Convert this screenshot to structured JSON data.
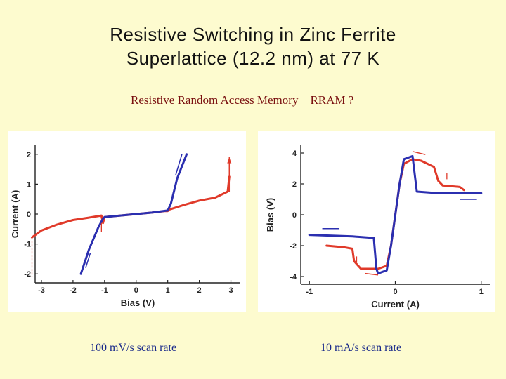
{
  "slide": {
    "title_line1": "Resistive Switching in Zinc Ferrite",
    "title_line2": "Superlattice (12.2 nm) at 77 K",
    "subtitle": "Resistive Random Access Memory    RRAM ?",
    "caption_left": "100 mV/s scan rate",
    "caption_right": "10 mA/s scan rate"
  },
  "chart_data": [
    {
      "type": "line",
      "title": "",
      "xlabel": "Bias (V)",
      "ylabel": "Current (A)",
      "xlim": [
        -3.2,
        3.3
      ],
      "ylim": [
        -2.3,
        2.3
      ],
      "xticks": [
        -3,
        -2,
        -1,
        0,
        1,
        2,
        3
      ],
      "xtick_labels": [
        "-3",
        "-2",
        "-1",
        "0",
        "1",
        "2",
        "3"
      ],
      "yticks": [
        -2,
        -1,
        0,
        1,
        2
      ],
      "ytick_labels": [
        "-2",
        "-1",
        "0",
        "1",
        "2"
      ],
      "grid": false,
      "series": [
        {
          "name": "red-sweep",
          "color": "#e03a2a",
          "x": [
            -3.3,
            -3.0,
            -2.5,
            -2.0,
            -1.5,
            -1.1,
            -1.05,
            -1.0,
            -0.8,
            -0.5,
            0.0,
            0.5,
            0.9,
            1.0,
            1.05,
            1.5,
            2.0,
            2.5,
            2.9,
            2.95
          ],
          "y": [
            -0.78,
            -0.55,
            -0.35,
            -0.2,
            -0.12,
            -0.05,
            -0.3,
            -0.1,
            -0.08,
            -0.05,
            0.0,
            0.05,
            0.1,
            0.1,
            0.15,
            0.3,
            0.45,
            0.55,
            0.75,
            1.25
          ]
        },
        {
          "name": "blue-sweep",
          "color": "#2b2fb0",
          "x": [
            -1.75,
            -1.5,
            -1.2,
            -1.05,
            -1.0,
            -0.5,
            0.0,
            0.5,
            1.0,
            1.1,
            1.3,
            1.6
          ],
          "y": [
            -2.0,
            -1.2,
            -0.45,
            -0.15,
            -0.1,
            -0.05,
            0.0,
            0.05,
            0.12,
            0.35,
            1.2,
            2.0
          ]
        }
      ],
      "annotations": [
        "dashed drop at -3.3 V",
        "dashed jump at 2.95 V",
        "blue arrows near -1.6 V and 1.3 V",
        "red arrows near -3.3 V and 2.95 V"
      ]
    },
    {
      "type": "line",
      "title": "",
      "xlabel": "Current (A)",
      "ylabel": "Bias (V)",
      "xlim": [
        -1.1,
        1.1
      ],
      "ylim": [
        -4.5,
        4.5
      ],
      "xticks": [
        -1,
        0,
        1
      ],
      "xtick_labels": [
        "-1",
        "0",
        "1"
      ],
      "yticks": [
        -4,
        -2,
        0,
        2,
        4
      ],
      "ytick_labels": [
        "-4",
        "-2",
        "0",
        "2",
        "4"
      ],
      "grid": false,
      "series": [
        {
          "name": "red-sweep",
          "color": "#e03a2a",
          "x": [
            -0.8,
            -0.6,
            -0.5,
            -0.48,
            -0.4,
            -0.2,
            -0.1,
            -0.05,
            0.0,
            0.05,
            0.1,
            0.2,
            0.3,
            0.45,
            0.5,
            0.55,
            0.75,
            0.8
          ],
          "y": [
            -2.0,
            -2.1,
            -2.2,
            -3.0,
            -3.5,
            -3.5,
            -3.3,
            -2.0,
            0.0,
            2.0,
            3.3,
            3.6,
            3.5,
            3.1,
            2.2,
            1.9,
            1.8,
            1.6
          ]
        },
        {
          "name": "blue-sweep",
          "color": "#2b2fb0",
          "x": [
            -1.0,
            -0.5,
            -0.25,
            -0.22,
            -0.2,
            -0.1,
            -0.05,
            0.0,
            0.05,
            0.1,
            0.2,
            0.25,
            0.5,
            1.0
          ],
          "y": [
            -1.3,
            -1.4,
            -1.5,
            -3.5,
            -3.8,
            -3.6,
            -2.0,
            0.0,
            2.0,
            3.6,
            3.8,
            1.5,
            1.4,
            1.4
          ]
        }
      ],
      "annotations": [
        "red arrows along upper and lower branches",
        "blue arrows near -0.8 A and 0.85 A"
      ]
    }
  ]
}
